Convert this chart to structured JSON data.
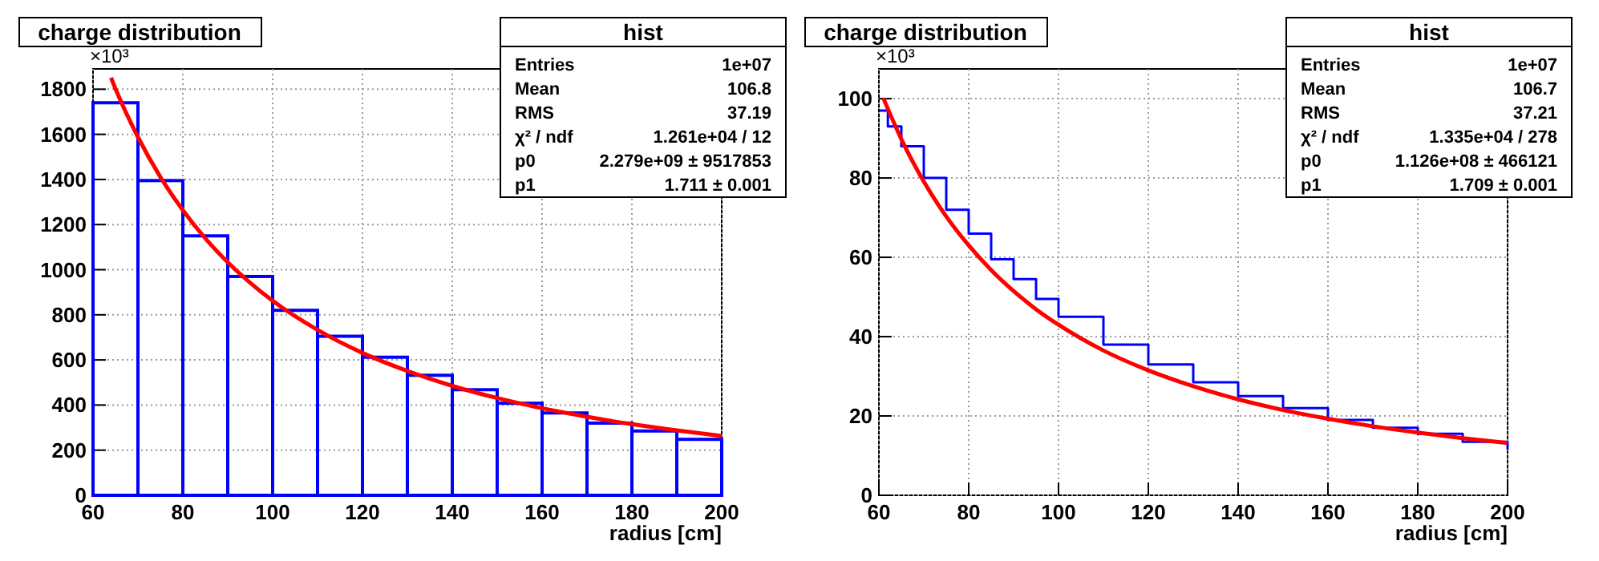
{
  "chart_data": [
    {
      "type": "histogram",
      "title": "charge distribution",
      "xlabel": "radius [cm]",
      "xlim": [
        60,
        200
      ],
      "xticks": [
        60,
        80,
        100,
        120,
        140,
        160,
        180,
        200
      ],
      "ylim": [
        0,
        1890
      ],
      "yticks": [
        0,
        200,
        400,
        600,
        800,
        1000,
        1200,
        1400,
        1600,
        1800
      ],
      "grid": true,
      "annotations": [
        "×10³",
        "hist",
        "Entries\t1e+07",
        "Mean\t106.8",
        "RMS\t37.19",
        "χ² / ndf\t1.261e+04 / 12",
        "p0\t2.279e+09 ± 9517853",
        "p1\t1.711 ± 0.001"
      ],
      "series": [
        {
          "color": "#0000ff",
          "bins": [
            60,
            70,
            80,
            90,
            100,
            110,
            120,
            130,
            140,
            150,
            160,
            170,
            180,
            190,
            200
          ],
          "values": [
            1740,
            1395,
            1150,
            970,
            820,
            705,
            612,
            532,
            468,
            408,
            365,
            320,
            285,
            248
          ]
        },
        {
          "type": "line",
          "color": "#ff0000",
          "x": [
            64,
            65,
            70,
            75,
            80,
            85,
            90,
            95,
            100,
            110,
            120,
            130,
            140,
            150,
            160,
            170,
            180,
            190,
            200
          ],
          "values": [
            1851,
            1802,
            1588,
            1411,
            1264,
            1139,
            1033,
            942,
            862,
            733,
            631,
            551,
            485,
            431,
            386,
            348,
            315,
            288,
            263
          ]
        }
      ]
    },
    {
      "type": "line",
      "title": "charge distribution",
      "xlabel": "radius [cm]",
      "xlim": [
        60,
        200
      ],
      "xticks": [
        60,
        80,
        100,
        120,
        140,
        160,
        180,
        200
      ],
      "ylim": [
        0,
        107.5
      ],
      "yticks": [
        0,
        20,
        40,
        60,
        80,
        100
      ],
      "grid": true,
      "annotations": [
        "×10³",
        "hist",
        "Entries\t1e+07",
        "Mean\t106.7",
        "RMS\t37.21",
        "χ² / ndf\t1.335e+04 / 278",
        "p0\t1.126e+08 ± 466121",
        "p1\t1.709 ± 0.001"
      ],
      "series": [
        {
          "type": "step",
          "color": "#0000ff",
          "x": [
            60,
            62,
            65,
            70,
            75,
            80,
            85,
            90,
            95,
            100,
            110,
            120,
            130,
            140,
            150,
            160,
            170,
            180,
            190,
            200
          ],
          "values": [
            97,
            93,
            88,
            80,
            72,
            66,
            59.5,
            54.5,
            49.5,
            45,
            38,
            33,
            28.5,
            25,
            22,
            19,
            17,
            15.5,
            13.5,
            11.5
          ]
        },
        {
          "color": "#ff0000",
          "x": [
            61,
            65,
            70,
            75,
            80,
            85,
            90,
            95,
            100,
            110,
            120,
            130,
            140,
            150,
            160,
            170,
            180,
            190,
            200
          ],
          "values": [
            100.1,
            89.8,
            79.1,
            70.3,
            63.0,
            56.8,
            51.5,
            46.9,
            43.0,
            36.5,
            31.5,
            27.5,
            24.2,
            21.5,
            19.3,
            17.4,
            15.8,
            14.4,
            13.2
          ]
        }
      ]
    }
  ]
}
